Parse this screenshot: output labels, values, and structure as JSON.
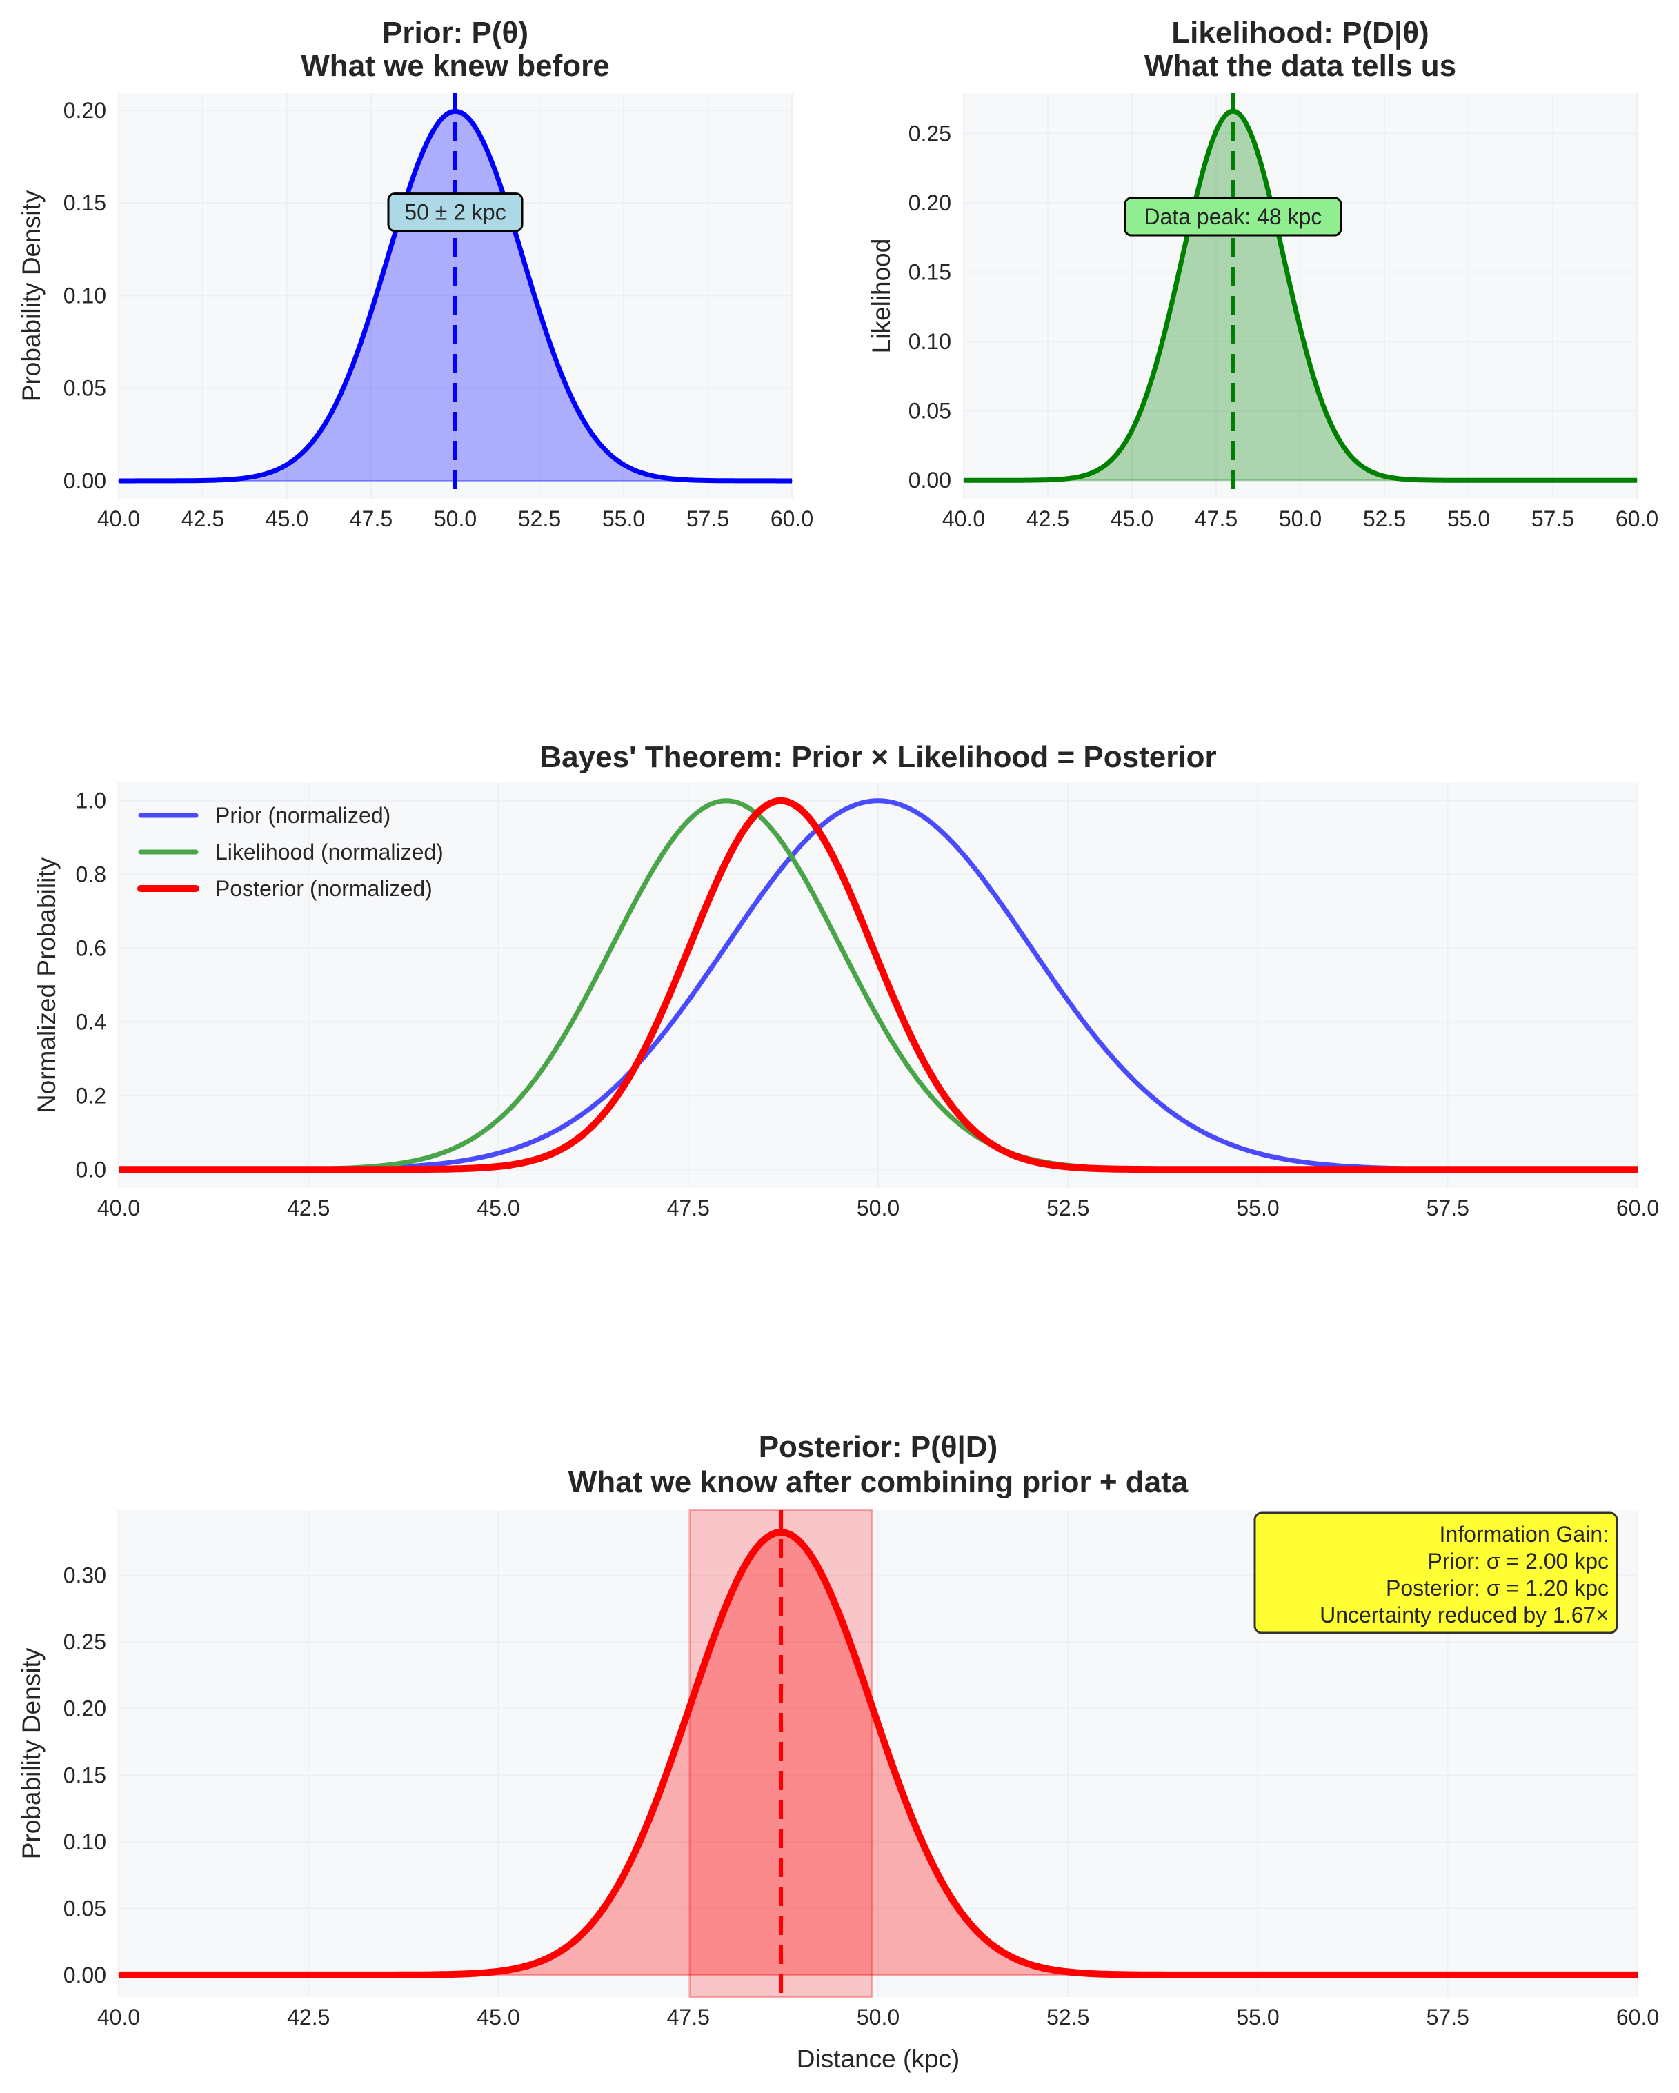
{
  "colors": {
    "prior": "#0000ff",
    "likelihood": "#008000",
    "posterior": "#ff0000",
    "prior_box": "#add8e6",
    "likelihood_box": "#90ee90",
    "info_box": "#ffff33",
    "plot_bg": "#f7f8fa",
    "text": "#262626"
  },
  "chart_data": [
    {
      "id": "prior",
      "type": "area",
      "title": "Prior: P(θ)",
      "subtitle": "What we knew before",
      "xlabel": "",
      "ylabel": "Probability Density",
      "xlim": [
        40,
        60
      ],
      "ylim": [
        -0.0097,
        0.2093
      ],
      "xticks": [
        "40.0",
        "42.5",
        "45.0",
        "47.5",
        "50.0",
        "52.5",
        "55.0",
        "57.5",
        "60.0"
      ],
      "yticks": [
        "0.00",
        "0.05",
        "0.10",
        "0.15",
        "0.20"
      ],
      "series": [
        {
          "name": "Prior",
          "distribution": "normal",
          "mean": 50,
          "sigma": 2,
          "peak": 0.1995
        }
      ],
      "vline": 50,
      "annotation": {
        "text": "50 ± 2 kpc",
        "x": 50,
        "y": 0.145
      },
      "grid": true
    },
    {
      "id": "likelihood",
      "type": "area",
      "title": "Likelihood: P(D|θ)",
      "subtitle": "What the data tells us",
      "xlabel": "",
      "ylabel": "Likelihood",
      "xlim": [
        40,
        60
      ],
      "ylim": [
        -0.0133,
        0.279
      ],
      "xticks": [
        "40.0",
        "42.5",
        "45.0",
        "47.5",
        "50.0",
        "52.5",
        "55.0",
        "57.5",
        "60.0"
      ],
      "yticks": [
        "0.00",
        "0.05",
        "0.10",
        "0.15",
        "0.20",
        "0.25"
      ],
      "series": [
        {
          "name": "Likelihood",
          "distribution": "normal",
          "mean": 48,
          "sigma": 1.5,
          "peak": 0.266
        }
      ],
      "vline": 48,
      "annotation": {
        "text": "Data peak: 48 kpc",
        "x": 48,
        "y": 0.19
      },
      "grid": true
    },
    {
      "id": "bayes",
      "type": "line",
      "title": "Bayes' Theorem: Prior × Likelihood = Posterior",
      "xlabel": "",
      "ylabel": "Normalized Probability",
      "xlim": [
        40,
        60
      ],
      "ylim": [
        -0.05,
        1.05
      ],
      "xticks": [
        "40.0",
        "42.5",
        "45.0",
        "47.5",
        "50.0",
        "52.5",
        "55.0",
        "57.5",
        "60.0"
      ],
      "yticks": [
        "0.0",
        "0.2",
        "0.4",
        "0.6",
        "0.8",
        "1.0"
      ],
      "series": [
        {
          "name": "Prior (normalized)",
          "distribution": "normal",
          "mean": 50,
          "sigma": 2,
          "peak": 1.0
        },
        {
          "name": "Likelihood (normalized)",
          "distribution": "normal",
          "mean": 48,
          "sigma": 1.5,
          "peak": 1.0
        },
        {
          "name": "Posterior (normalized)",
          "distribution": "normal",
          "mean": 48.72,
          "sigma": 1.2,
          "peak": 1.0
        }
      ],
      "legend": "top-left",
      "grid": true
    },
    {
      "id": "posterior",
      "type": "area",
      "title": "Posterior: P(θ|D)",
      "subtitle": "What we know after combining prior + data",
      "xlabel": "Distance (kpc)",
      "ylabel": "Probability Density",
      "xlim": [
        40,
        60
      ],
      "ylim": [
        -0.0166,
        0.349
      ],
      "xticks": [
        "40.0",
        "42.5",
        "45.0",
        "47.5",
        "50.0",
        "52.5",
        "55.0",
        "57.5",
        "60.0"
      ],
      "yticks": [
        "0.00",
        "0.05",
        "0.10",
        "0.15",
        "0.20",
        "0.25",
        "0.30"
      ],
      "series": [
        {
          "name": "Posterior",
          "distribution": "normal",
          "mean": 48.72,
          "sigma": 1.2,
          "peak": 0.3324
        }
      ],
      "vline": 48.72,
      "credible_interval": [
        47.52,
        49.92
      ],
      "info_box": {
        "position": "top-right",
        "lines": [
          "Information Gain:",
          "Prior: σ = 2.00 kpc",
          "Posterior: σ = 1.20 kpc",
          "Uncertainty reduced by 1.67×"
        ]
      },
      "grid": true
    }
  ]
}
